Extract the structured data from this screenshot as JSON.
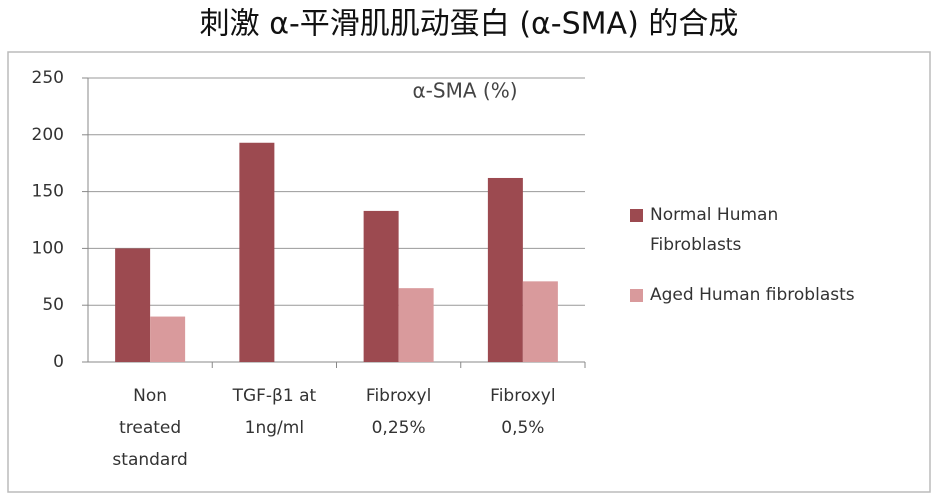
{
  "chart_data": {
    "type": "bar",
    "title": "刺激 α-平滑肌肌动蛋白 (α-SMA) 的合成",
    "subtitle": "α-SMA (%)",
    "categories": [
      "Non treated standard",
      "TGF-β1 at 1ng/ml",
      "Fibroxyl 0,25%",
      "Fibroxyl 0,5%"
    ],
    "series": [
      {
        "name": "Normal Human Fibroblasts",
        "color": "#9c4a50",
        "values": [
          100,
          193,
          133,
          162
        ]
      },
      {
        "name": "Aged Human fibroblasts",
        "color": "#d99a9c",
        "values": [
          40,
          null,
          65,
          71
        ]
      }
    ],
    "ylim": [
      0,
      250
    ],
    "yticks": [
      0,
      50,
      100,
      150,
      200,
      250
    ],
    "grid": true,
    "legend": "right"
  }
}
